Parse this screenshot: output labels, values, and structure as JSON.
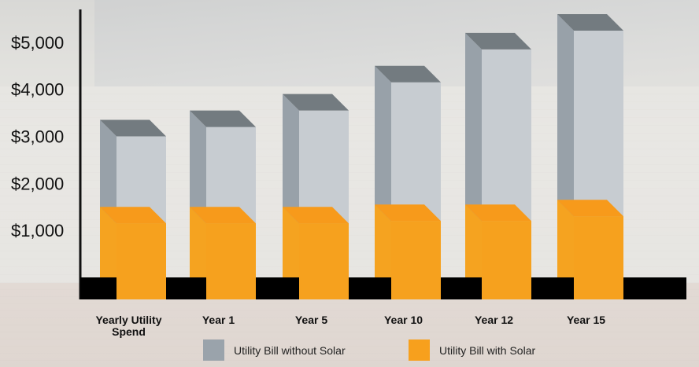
{
  "colors": {
    "without_solar_front": "#c7ccd1",
    "without_solar_side": "#98a1a9",
    "without_solar_top": "#737b80",
    "with_solar_front": "#f6a11e",
    "with_solar_side": "#f5a320",
    "with_solar_top": "#f79a1b",
    "base_bar": "#000000"
  },
  "legend": [
    {
      "label": "Utility Bill without Solar",
      "color": "#9aa3ab"
    },
    {
      "label": "Utility Bill with Solar",
      "color": "#f7a01d"
    }
  ],
  "chart_data": {
    "type": "bar",
    "categories": [
      "Yearly Utility Spend",
      "Year 1",
      "Year 5",
      "Year 10",
      "Year 12",
      "Year 15"
    ],
    "category_lines": [
      [
        "Yearly Utility",
        "Spend"
      ],
      [
        "Year 1"
      ],
      [
        "Year 5"
      ],
      [
        "Year 10"
      ],
      [
        "Year 12"
      ],
      [
        "Year 15"
      ]
    ],
    "series": [
      {
        "name": "Utility Bill without Solar",
        "values": [
          3000,
          3200,
          3550,
          4150,
          4850,
          5250
        ]
      },
      {
        "name": "Utility Bill with Solar",
        "values": [
          1150,
          1150,
          1150,
          1200,
          1200,
          1300
        ]
      }
    ],
    "yticks": [
      "$1,000",
      "$2,000",
      "$3,000",
      "$4,000",
      "$5,000"
    ],
    "ytick_values": [
      1000,
      2000,
      3000,
      4000,
      5000
    ],
    "ylim": [
      0,
      5400
    ],
    "title": "",
    "xlabel": "",
    "ylabel": "",
    "legend_position": "bottom"
  }
}
